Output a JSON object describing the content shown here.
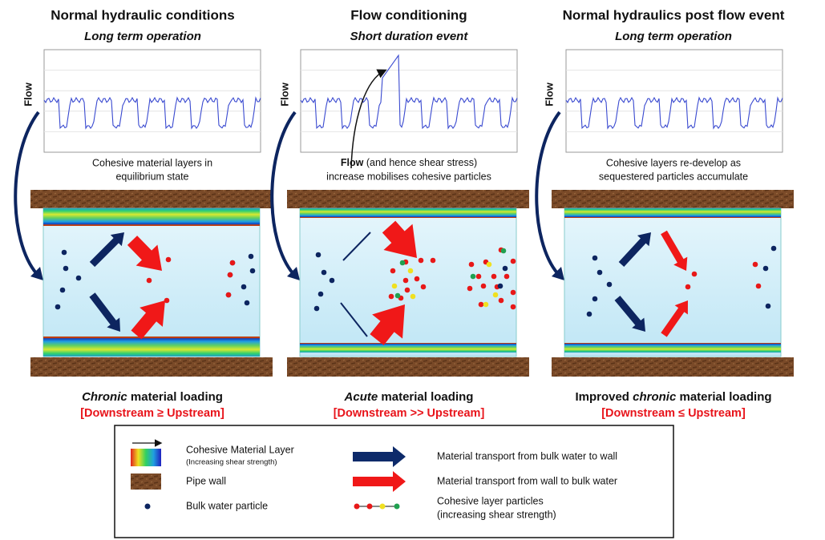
{
  "panels": [
    {
      "title": "Normal hydraulic conditions",
      "subtitle": "Long term operation",
      "axis_label": "Flow",
      "description": [
        "Cohesive material layers in",
        "equilibrium state"
      ],
      "caption": {
        "emphasis": "Chronic",
        "rest": "material loading"
      },
      "relation": "[Downstream ≥ Upstream]"
    },
    {
      "title": "Flow conditioning",
      "subtitle": "Short duration event",
      "axis_label": "Flow",
      "description": [
        {
          "bold": "Flow",
          "rest": "(and hence shear stress)"
        },
        "increase mobilises cohesive particles"
      ],
      "caption": {
        "emphasis": "Acute",
        "rest": "material loading"
      },
      "relation": "[Downstream >> Upstream]"
    },
    {
      "title": "Normal hydraulics post flow event",
      "subtitle": "Long term operation",
      "axis_label": "Flow",
      "description": [
        "Cohesive layers re-develop as",
        "sequestered particles accumulate"
      ],
      "caption": {
        "lead": "Improved",
        "emphasis": "chronic",
        "rest": "material loading"
      },
      "relation": "[Downstream ≤ Upstream]"
    }
  ],
  "legend": {
    "cohesive_layer": [
      "Cohesive Material Layer",
      "(Increasing shear strength)"
    ],
    "pipe_wall": "Pipe wall",
    "bulk_particle": "Bulk water particle",
    "to_wall": "Material transport from bulk water to wall",
    "to_bulk": "Material transport from wall to bulk water",
    "layer_particles": [
      "Cohesive layer particles",
      "(increasing shear strength)"
    ]
  }
}
